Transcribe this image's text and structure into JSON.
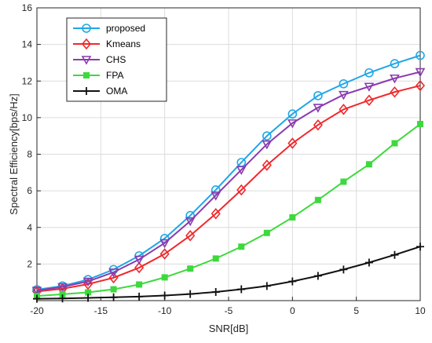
{
  "chart_data": {
    "type": "line",
    "title": "",
    "xlabel": "SNR[dB]",
    "ylabel": "Spectral Efficiency[bps/Hz]",
    "xlim": [
      -20,
      10
    ],
    "ylim": [
      0,
      16
    ],
    "xticks": [
      -20,
      -15,
      -10,
      -5,
      0,
      5,
      10
    ],
    "yticks": [
      2,
      4,
      6,
      8,
      10,
      12,
      14,
      16
    ],
    "grid": true,
    "legend_position": "top-left",
    "x": [
      -20,
      -18,
      -16,
      -14,
      -12,
      -10,
      -8,
      -6,
      -4,
      -2,
      0,
      2,
      4,
      6,
      8,
      10
    ],
    "series": [
      {
        "name": "proposed",
        "color": "#1fa7e6",
        "marker": "circle",
        "values": [
          0.6,
          0.8,
          1.15,
          1.7,
          2.45,
          3.4,
          4.65,
          6.05,
          7.55,
          9.0,
          10.2,
          11.2,
          11.85,
          12.45,
          12.95,
          13.4
        ]
      },
      {
        "name": "Kmeans",
        "color": "#f0282d",
        "marker": "diamond",
        "values": [
          0.5,
          0.65,
          0.9,
          1.25,
          1.8,
          2.55,
          3.55,
          4.75,
          6.05,
          7.4,
          8.6,
          9.6,
          10.45,
          10.95,
          11.4,
          11.75
        ]
      },
      {
        "name": "CHS",
        "color": "#8a3bb0",
        "marker": "triangle-down",
        "values": [
          0.55,
          0.75,
          1.05,
          1.55,
          2.25,
          3.15,
          4.35,
          5.75,
          7.15,
          8.55,
          9.7,
          10.55,
          11.25,
          11.7,
          12.15,
          12.5
        ]
      },
      {
        "name": "FPA",
        "color": "#3dd93d",
        "marker": "square",
        "values": [
          0.25,
          0.35,
          0.45,
          0.62,
          0.88,
          1.27,
          1.75,
          2.3,
          2.95,
          3.7,
          4.55,
          5.5,
          6.5,
          7.45,
          8.6,
          9.65
        ]
      },
      {
        "name": "OMA",
        "color": "#111111",
        "marker": "plus",
        "values": [
          0.1,
          0.12,
          0.15,
          0.18,
          0.22,
          0.28,
          0.36,
          0.47,
          0.62,
          0.8,
          1.05,
          1.35,
          1.7,
          2.08,
          2.5,
          2.95
        ]
      }
    ]
  }
}
